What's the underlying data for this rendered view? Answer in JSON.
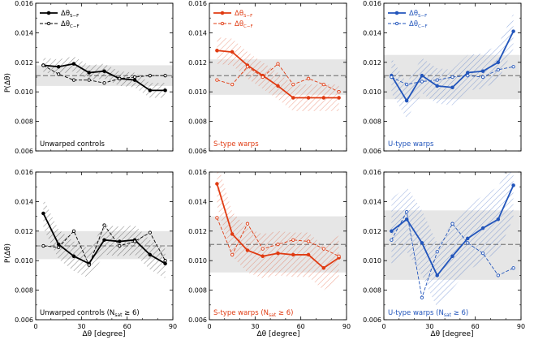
{
  "figure": {
    "ylabel": "P(Δθ)",
    "xlabel": "Δθ [degree]",
    "x_ticks": [
      0,
      30,
      60,
      90
    ],
    "y_ticks": [
      "0.006",
      "0.008",
      "0.010",
      "0.012",
      "0.014",
      "0.016"
    ],
    "legend": {
      "solid_label": "Δθ",
      "solid_sub": "S−F",
      "dashed_label": "Δθ",
      "dashed_sub": "C−F"
    },
    "colors": {
      "unwarped": "#000000",
      "s_type": "#e03b12",
      "u_type": "#2255bb",
      "band": "#e6e6e6",
      "reference_line": "#555555"
    }
  },
  "chart_data": [
    {
      "type": "line",
      "label": "Unwarped controls",
      "label_suffix": "",
      "color": "#000000",
      "xlim": [
        0,
        90
      ],
      "ylim": [
        0.006,
        0.016
      ],
      "reference_y": 0.0111,
      "band": [
        0.0104,
        0.0118
      ],
      "x": [
        5,
        15,
        25,
        35,
        45,
        55,
        65,
        75,
        85
      ],
      "series": [
        {
          "name": "ΔθS−F",
          "style": "solid",
          "values": [
            0.0118,
            0.0117,
            0.0119,
            0.0113,
            0.0114,
            0.0109,
            0.0108,
            0.0101,
            0.0101
          ],
          "error": 0.0005
        },
        {
          "name": "ΔθC−F",
          "style": "dashed",
          "values": [
            0.0118,
            0.0112,
            0.0108,
            0.0108,
            0.0106,
            0.0109,
            0.011,
            0.0111,
            0.0111
          ]
        }
      ]
    },
    {
      "type": "line",
      "label": "S-type warps",
      "label_suffix": "",
      "color": "#e03b12",
      "xlim": [
        0,
        90
      ],
      "ylim": [
        0.006,
        0.016
      ],
      "reference_y": 0.0111,
      "band": [
        0.0098,
        0.0122
      ],
      "x": [
        5,
        15,
        25,
        35,
        45,
        55,
        65,
        75,
        85
      ],
      "series": [
        {
          "name": "ΔθS−F",
          "style": "solid",
          "values": [
            0.0128,
            0.0127,
            0.0118,
            0.0111,
            0.0104,
            0.0096,
            0.0096,
            0.0096,
            0.0096
          ],
          "error": 0.0009
        },
        {
          "name": "ΔθC−F",
          "style": "dashed",
          "values": [
            0.0108,
            0.0105,
            0.0117,
            0.011,
            0.0119,
            0.0105,
            0.0109,
            0.0105,
            0.01
          ]
        }
      ]
    },
    {
      "type": "line",
      "label": "U-type warps",
      "label_suffix": "",
      "color": "#2255bb",
      "xlim": [
        0,
        90
      ],
      "ylim": [
        0.006,
        0.016
      ],
      "reference_y": 0.0111,
      "band": [
        0.0095,
        0.0125
      ],
      "x": [
        5,
        15,
        25,
        35,
        45,
        55,
        65,
        75,
        85
      ],
      "series": [
        {
          "name": "ΔθS−F",
          "style": "solid",
          "values": [
            0.0111,
            0.0094,
            0.0111,
            0.0104,
            0.0103,
            0.0113,
            0.0114,
            0.012,
            0.0141
          ],
          "error": 0.0012
        },
        {
          "name": "ΔθC−F",
          "style": "dashed",
          "values": [
            0.011,
            0.0105,
            0.0107,
            0.0108,
            0.011,
            0.0111,
            0.011,
            0.0115,
            0.0117
          ]
        }
      ]
    },
    {
      "type": "line",
      "label": "Unwarped controls (N",
      "label_suffix": " ≥ 6)",
      "color": "#000000",
      "xlim": [
        0,
        90
      ],
      "ylim": [
        0.006,
        0.016
      ],
      "reference_y": 0.011,
      "band": [
        0.0101,
        0.012
      ],
      "x": [
        5,
        15,
        25,
        35,
        45,
        55,
        65,
        75,
        85
      ],
      "series": [
        {
          "name": "ΔθS−F",
          "style": "solid",
          "values": [
            0.0132,
            0.0111,
            0.0103,
            0.0098,
            0.0114,
            0.0113,
            0.0114,
            0.0104,
            0.0098
          ],
          "error": 0.001
        },
        {
          "name": "ΔθC−F",
          "style": "dashed",
          "values": [
            0.011,
            0.0109,
            0.012,
            0.0097,
            0.0124,
            0.011,
            0.0113,
            0.0119,
            0.01
          ]
        }
      ]
    },
    {
      "type": "line",
      "label": "S-type warps (N",
      "label_suffix": " ≥ 6)",
      "color": "#e03b12",
      "xlim": [
        0,
        90
      ],
      "ylim": [
        0.006,
        0.016
      ],
      "reference_y": 0.0111,
      "band": [
        0.0092,
        0.013
      ],
      "x": [
        5,
        15,
        25,
        35,
        45,
        55,
        65,
        75,
        85
      ],
      "series": [
        {
          "name": "ΔθS−F",
          "style": "solid",
          "values": [
            0.0152,
            0.0118,
            0.0107,
            0.0103,
            0.0105,
            0.0104,
            0.0104,
            0.0095,
            0.0102
          ],
          "error": 0.0015
        },
        {
          "name": "ΔθC−F",
          "style": "dashed",
          "values": [
            0.0129,
            0.0104,
            0.0125,
            0.0108,
            0.0111,
            0.0114,
            0.0113,
            0.0108,
            0.0103
          ]
        }
      ]
    },
    {
      "type": "line",
      "label": "U-type warps (N",
      "label_suffix": " ≥ 6)",
      "color": "#2255bb",
      "xlim": [
        0,
        90
      ],
      "ylim": [
        0.006,
        0.016
      ],
      "reference_y": 0.0111,
      "band": [
        0.0087,
        0.0134
      ],
      "x": [
        5,
        15,
        25,
        35,
        45,
        55,
        65,
        75,
        85
      ],
      "series": [
        {
          "name": "ΔθS−F",
          "style": "solid",
          "values": [
            0.012,
            0.0128,
            0.0112,
            0.009,
            0.0103,
            0.0115,
            0.0122,
            0.0128,
            0.0151
          ],
          "error": 0.0022
        },
        {
          "name": "ΔθC−F",
          "style": "dashed",
          "values": [
            0.0114,
            0.0133,
            0.0075,
            0.0106,
            0.0125,
            0.0112,
            0.0105,
            0.009,
            0.0095
          ]
        }
      ]
    }
  ],
  "subscript_label": "sat"
}
